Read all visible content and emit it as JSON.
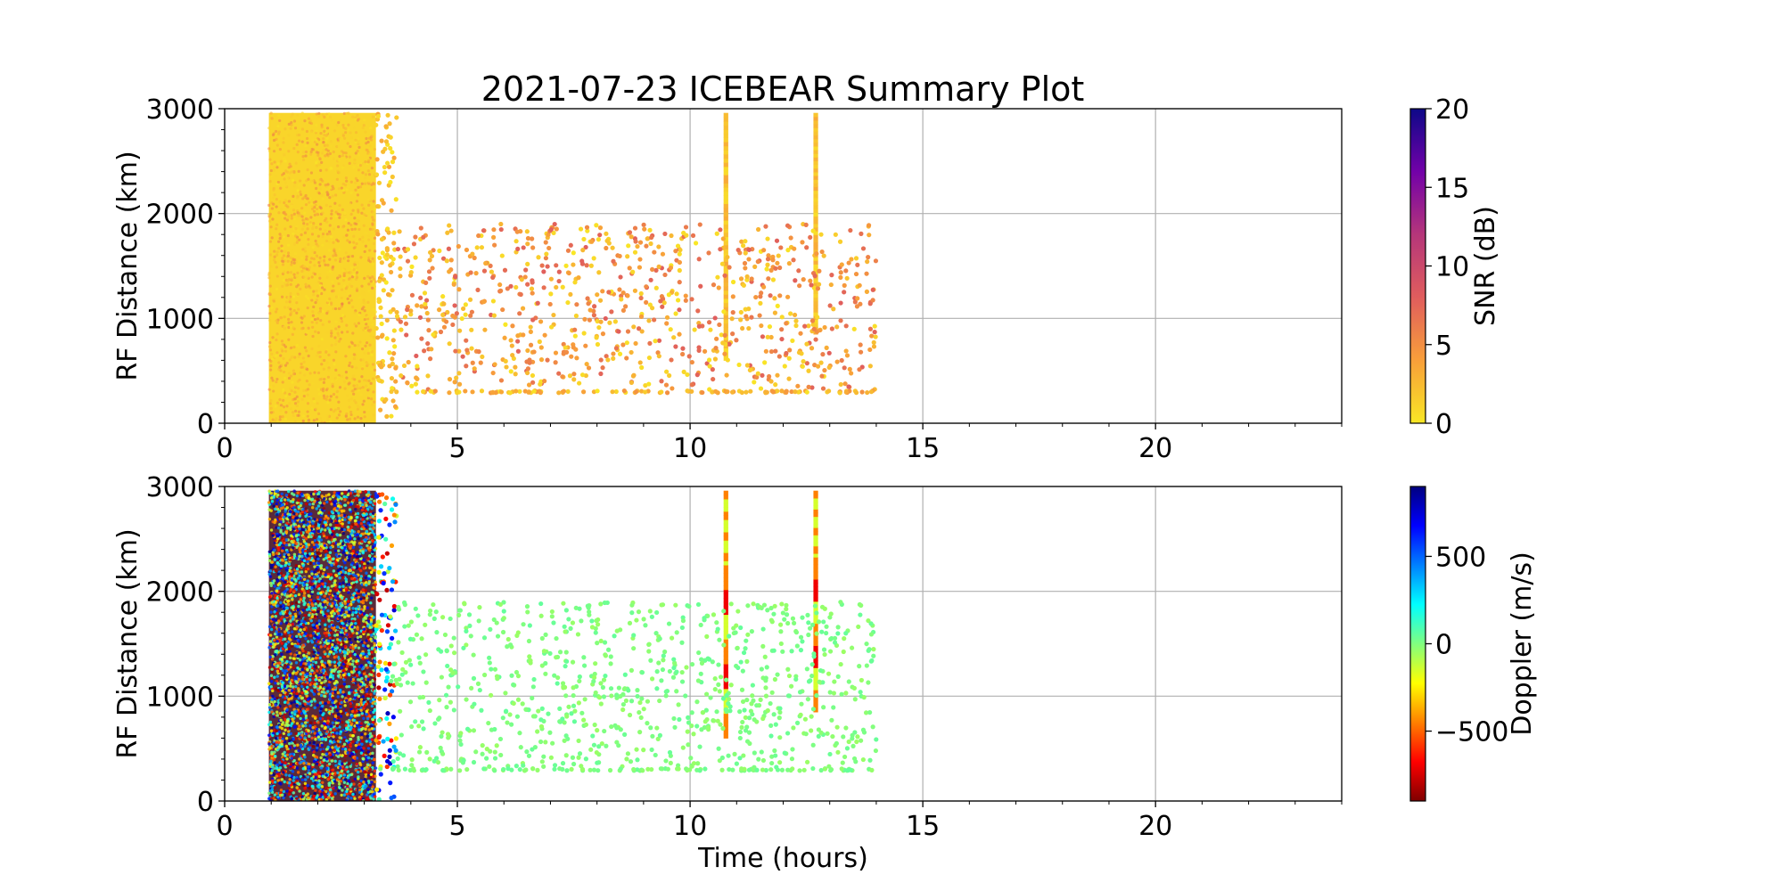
{
  "figure": {
    "title": "2021-07-23 ICEBEAR Summary Plot"
  },
  "chart_data": [
    {
      "type": "scatter",
      "name": "snr-panel",
      "xlabel": "",
      "ylabel": "RF Distance (km)",
      "xlim": [
        0,
        24
      ],
      "ylim": [
        0,
        3000
      ],
      "xticks": [
        "0",
        "5",
        "10",
        "15",
        "20"
      ],
      "xtick_values": [
        0,
        5,
        10,
        15,
        20
      ],
      "yticks": [
        "0",
        "1000",
        "2000",
        "3000"
      ],
      "ytick_values": [
        0,
        1000,
        2000,
        3000
      ],
      "grid": true,
      "colorbar": {
        "label": "SNR (dB)",
        "min": 0,
        "max": 20,
        "ticks": [
          "0",
          "5",
          "10",
          "15",
          "20"
        ],
        "tick_values": [
          0,
          5,
          10,
          15,
          20
        ],
        "colormap": "plasma_r",
        "colors": [
          "#f9e725",
          "#f89f3a",
          "#e05d5d",
          "#b5367a",
          "#7201a8",
          "#0d0887"
        ]
      },
      "regions": [
        {
          "x0": 0.95,
          "x1": 3.25,
          "y0": 0,
          "y1": 2960,
          "value": 1,
          "kind": "dense-block"
        },
        {
          "x0": 10.72,
          "x1": 10.82,
          "y0": 600,
          "y1": 2960,
          "value": 2,
          "kind": "vertical-streak"
        },
        {
          "x0": 12.65,
          "x1": 12.75,
          "y0": 850,
          "y1": 2960,
          "value": 2,
          "kind": "vertical-streak"
        }
      ],
      "scatter_clusters": [
        {
          "x0": 3.25,
          "x1": 3.7,
          "y0": 0,
          "y1": 2950,
          "count": 120,
          "value_min": 0,
          "value_max": 4
        },
        {
          "x0": 3.7,
          "x1": 14.0,
          "y0": 320,
          "y1": 1900,
          "count": 850,
          "value_min": 0,
          "value_max": 8
        },
        {
          "x0": 3.5,
          "x1": 14.0,
          "y0": 290,
          "y1": 310,
          "count": 110,
          "value_min": 0,
          "value_max": 5
        }
      ]
    },
    {
      "type": "scatter",
      "name": "doppler-panel",
      "xlabel": "Time (hours)",
      "ylabel": "RF Distance (km)",
      "xlim": [
        0,
        24
      ],
      "ylim": [
        0,
        3000
      ],
      "xticks": [
        "0",
        "5",
        "10",
        "15",
        "20"
      ],
      "xtick_values": [
        0,
        5,
        10,
        15,
        20
      ],
      "yticks": [
        "0",
        "1000",
        "2000",
        "3000"
      ],
      "ytick_values": [
        0,
        1000,
        2000,
        3000
      ],
      "grid": true,
      "colorbar": {
        "label": "Doppler (m/s)",
        "min": -900,
        "max": 900,
        "ticks": [
          "−500",
          "0",
          "500"
        ],
        "tick_values": [
          -500,
          0,
          500
        ],
        "colormap": "jet_r",
        "colors": [
          "#7f0000",
          "#ff0000",
          "#ff8000",
          "#ffff00",
          "#80ff80",
          "#00ffff",
          "#0080ff",
          "#0000ff",
          "#00007f"
        ]
      },
      "regions": [
        {
          "x0": 0.95,
          "x1": 3.25,
          "y0": 0,
          "y1": 2960,
          "value": 0,
          "kind": "dense-mixed-block"
        },
        {
          "x0": 10.72,
          "x1": 10.82,
          "y0": 600,
          "y1": 2960,
          "value": -450,
          "kind": "vertical-streak"
        },
        {
          "x0": 12.65,
          "x1": 12.75,
          "y0": 850,
          "y1": 2960,
          "value": -450,
          "kind": "vertical-streak"
        }
      ],
      "scatter_clusters": [
        {
          "x0": 3.25,
          "x1": 3.7,
          "y0": 0,
          "y1": 2950,
          "count": 120,
          "value_min": -800,
          "value_max": 800
        },
        {
          "x0": 3.7,
          "x1": 14.0,
          "y0": 320,
          "y1": 1900,
          "count": 850,
          "value_min": -50,
          "value_max": 50
        },
        {
          "x0": 3.5,
          "x1": 14.0,
          "y0": 290,
          "y1": 310,
          "count": 110,
          "value_min": -50,
          "value_max": 50
        }
      ]
    }
  ]
}
